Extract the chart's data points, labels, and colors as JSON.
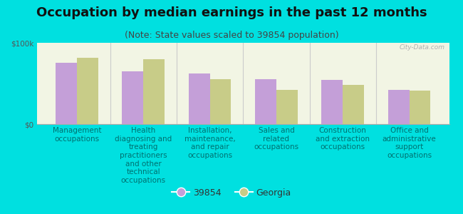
{
  "title": "Occupation by median earnings in the past 12 months",
  "subtitle": "(Note: State values scaled to 39854 population)",
  "categories": [
    "Management\noccupations",
    "Health\ndiagnosing and\ntreating\npractitioners\nand other\ntechnical\noccupations",
    "Installation,\nmaintenance,\nand repair\noccupations",
    "Sales and\nrelated\noccupations",
    "Construction\nand extraction\noccupations",
    "Office and\nadministrative\nsupport\noccupations"
  ],
  "values_39854": [
    75000,
    65000,
    62000,
    55000,
    54000,
    42000
  ],
  "values_georgia": [
    82000,
    80000,
    55000,
    42000,
    48000,
    41000
  ],
  "color_39854": "#c49fd8",
  "color_georgia": "#c8cc88",
  "background_color": "#00e0e0",
  "plot_bg_color": "#f2f5e4",
  "ylim": [
    0,
    100000
  ],
  "yticks": [
    0,
    100000
  ],
  "ytick_labels": [
    "$0",
    "$100k"
  ],
  "legend_label_1": "39854",
  "legend_label_2": "Georgia",
  "watermark": "City-Data.com",
  "title_fontsize": 13,
  "subtitle_fontsize": 9,
  "tick_fontsize": 7.5,
  "legend_fontsize": 9
}
